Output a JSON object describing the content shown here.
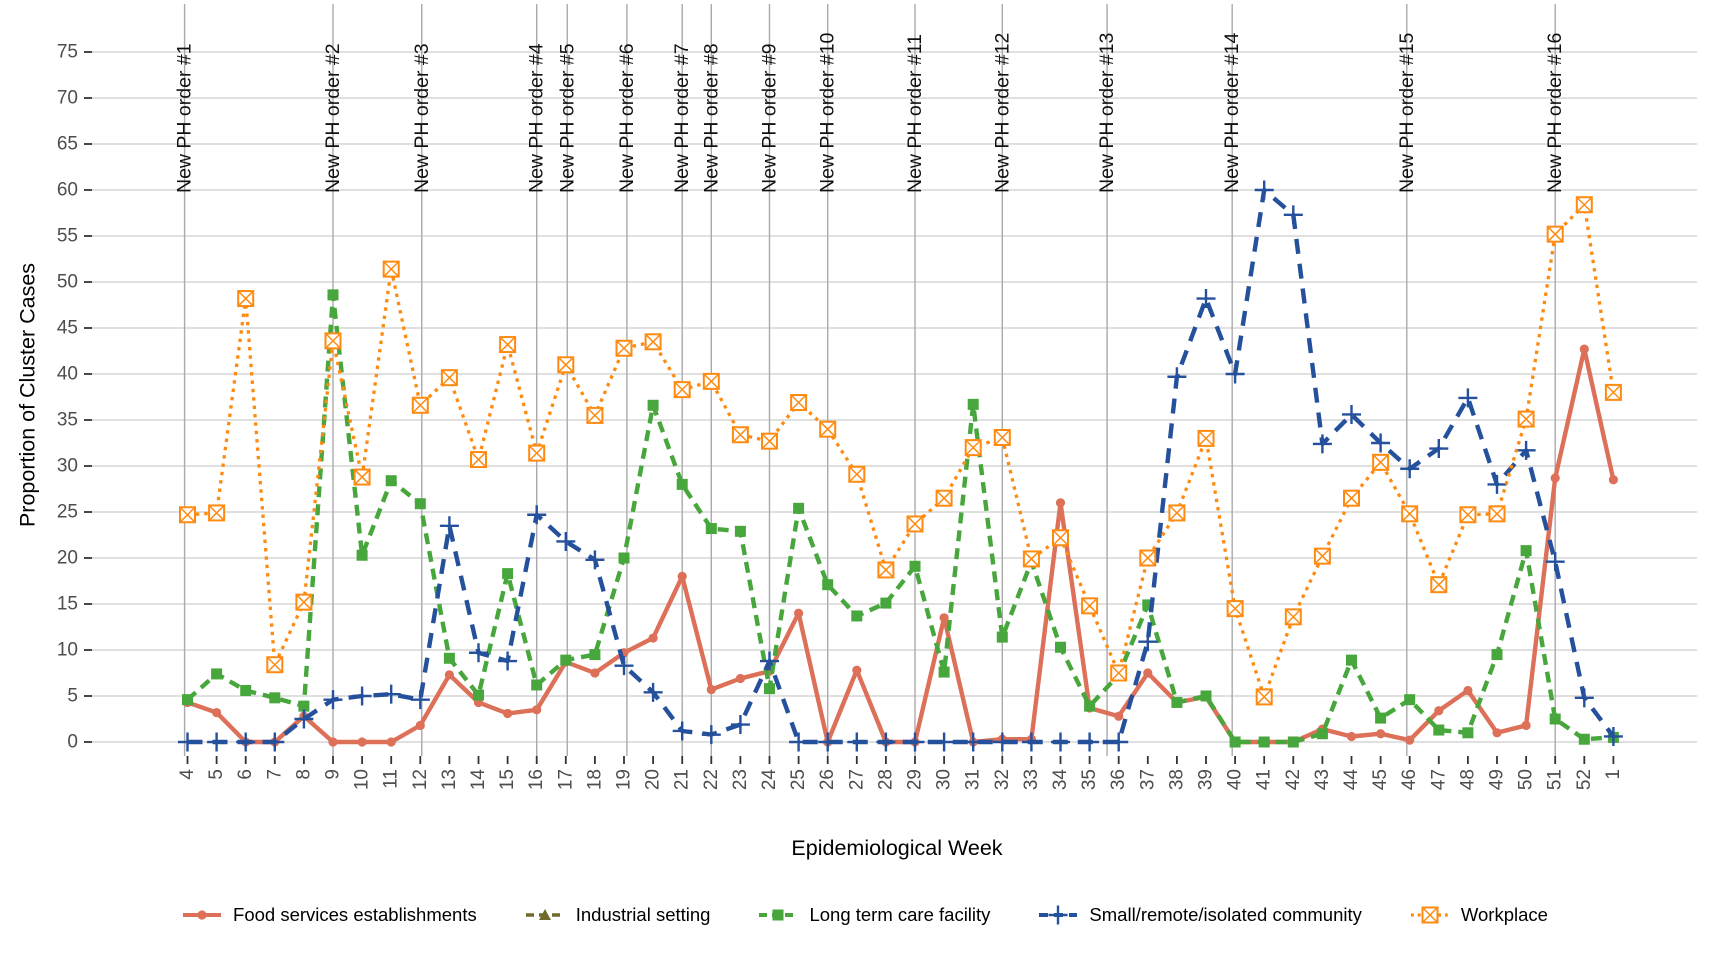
{
  "chart_data": {
    "type": "line",
    "title": "",
    "xlabel": "Epidemiological Week",
    "ylabel": "Proportion of Cluster Cases",
    "ylim": [
      0,
      75
    ],
    "y_ticks": [
      0,
      5,
      10,
      15,
      20,
      25,
      30,
      35,
      40,
      45,
      50,
      55,
      60,
      65,
      70,
      75
    ],
    "grid": "horizontal",
    "legend_position": "bottom",
    "colors": {
      "grid": "#d6d6d6",
      "vline": "#aaaaaa",
      "tick": "#333333",
      "axis_text": "#4d4d4d",
      "annotation_text": "#111111"
    },
    "x_tick_labels": [
      "4",
      "5",
      "6",
      "7",
      "8",
      "9",
      "10",
      "11",
      "12",
      "13",
      "14",
      "15",
      "16",
      "17",
      "18",
      "19",
      "20",
      "21",
      "22",
      "23",
      "24",
      "25",
      "26",
      "27",
      "28",
      "29",
      "30",
      "31",
      "32",
      "33",
      "34",
      "35",
      "36",
      "37",
      "38",
      "39",
      "40",
      "41",
      "42",
      "43",
      "44",
      "45",
      "46",
      "47",
      "48",
      "49",
      "50",
      "51",
      "52",
      "1"
    ],
    "series": [
      {
        "name": "Food services establishments",
        "color": "#DD7059",
        "marker": "circle",
        "line": "solid",
        "width": 4.4,
        "values": [
          4.3,
          3.2,
          0,
          0,
          2.8,
          0,
          0,
          0,
          1.8,
          7.3,
          4.3,
          3.1,
          3.5,
          8.7,
          7.5,
          9.7,
          11.3,
          18,
          5.7,
          6.9,
          7.7,
          14,
          0,
          7.8,
          0,
          0,
          13.5,
          0,
          0.3,
          0.3,
          26,
          3.7,
          2.8,
          7.5,
          4.3,
          4.9,
          0,
          0,
          0,
          1.4,
          0.6,
          0.9,
          0.2,
          3.4,
          5.6,
          1,
          1.8,
          28.7,
          42.7,
          28.5
        ]
      },
      {
        "name": "Industrial setting",
        "color": "#6F6B2B",
        "marker": "triangle",
        "line": "dashed",
        "width": 3.6,
        "values": [
          null,
          null,
          null,
          null,
          null,
          null,
          null,
          null,
          null,
          null,
          null,
          null,
          null,
          null,
          null,
          null,
          null,
          null,
          null,
          null,
          null,
          null,
          null,
          null,
          null,
          null,
          null,
          null,
          null,
          null,
          null,
          null,
          null,
          null,
          null,
          null,
          null,
          null,
          null,
          null,
          null,
          null,
          null,
          null,
          null,
          null,
          null,
          null,
          null,
          null
        ]
      },
      {
        "name": "Long term care facility",
        "color": "#47A63C",
        "marker": "square",
        "line": "dashed",
        "width": 4.4,
        "values": [
          4.6,
          7.4,
          5.6,
          4.8,
          3.9,
          48.6,
          20.3,
          28.4,
          25.9,
          9.1,
          5.1,
          18.3,
          6.2,
          8.9,
          9.5,
          20,
          36.6,
          28,
          23.2,
          22.9,
          5.8,
          25.4,
          17.1,
          13.7,
          15.1,
          19.1,
          7.6,
          36.7,
          11.4,
          19.6,
          10.3,
          3.9,
          7.3,
          14.9,
          4.3,
          5,
          0,
          0,
          0,
          0.9,
          8.9,
          2.6,
          4.6,
          1.3,
          1,
          9.5,
          20.8,
          2.5,
          0.3,
          0.5
        ]
      },
      {
        "name": "Small/remote/isolated community",
        "color": "#25519C",
        "marker": "plus",
        "line": "longdash",
        "width": 4.4,
        "values": [
          0,
          0,
          0,
          0,
          2.5,
          4.6,
          5,
          5.2,
          4.6,
          23.5,
          9.7,
          8.8,
          24.7,
          21.8,
          19.8,
          8.3,
          5.4,
          1.2,
          0.8,
          1.9,
          8.8,
          0,
          0,
          0,
          0,
          0,
          0,
          0,
          0,
          0,
          0,
          0,
          0,
          10.9,
          39.7,
          48.2,
          40,
          60,
          57.3,
          32.4,
          35.6,
          32.5,
          29.7,
          31.9,
          37.4,
          28,
          31.7,
          19.6,
          4.8,
          0.6
        ]
      },
      {
        "name": "Workplace",
        "color": "#FF8A10",
        "marker": "box-x",
        "line": "dotted",
        "width": 3.3,
        "values": [
          24.7,
          24.9,
          48.2,
          8.4,
          15.2,
          43.6,
          28.8,
          51.4,
          36.6,
          39.6,
          30.7,
          43.2,
          31.4,
          41,
          35.5,
          42.8,
          43.5,
          38.3,
          39.2,
          33.4,
          32.7,
          36.9,
          34,
          29.1,
          18.7,
          23.7,
          26.5,
          32,
          33.1,
          19.9,
          22.2,
          14.8,
          7.5,
          20,
          24.9,
          33,
          14.5,
          4.9,
          13.6,
          20.2,
          26.5,
          30.4,
          24.8,
          17.1,
          24.7,
          24.8,
          35.1,
          55.2,
          58.4,
          38
        ]
      }
    ],
    "annotations": {
      "vlines": [
        {
          "label": "New PH order #1",
          "week_index": -0.1
        },
        {
          "label": "New PH order #2",
          "week_index": 5
        },
        {
          "label": "New PH order #3",
          "week_index": 8.05
        },
        {
          "label": "New PH order #4",
          "week_index": 12
        },
        {
          "label": "New PH order #5",
          "week_index": 13.05
        },
        {
          "label": "New PH order #6",
          "week_index": 15.1
        },
        {
          "label": "New PH order #7",
          "week_index": 17
        },
        {
          "label": "New PH order #8",
          "week_index": 18
        },
        {
          "label": "New PH order #9",
          "week_index": 20
        },
        {
          "label": "New PH order #10",
          "week_index": 22
        },
        {
          "label": "New PH order #11",
          "week_index": 25
        },
        {
          "label": "New PH order #12",
          "week_index": 28
        },
        {
          "label": "New PH order #13",
          "week_index": 31.6
        },
        {
          "label": "New PH order #14",
          "week_index": 35.9
        },
        {
          "label": "New PH order #15",
          "week_index": 41.9
        },
        {
          "label": "New PH order #16",
          "week_index": 47
        }
      ]
    }
  }
}
